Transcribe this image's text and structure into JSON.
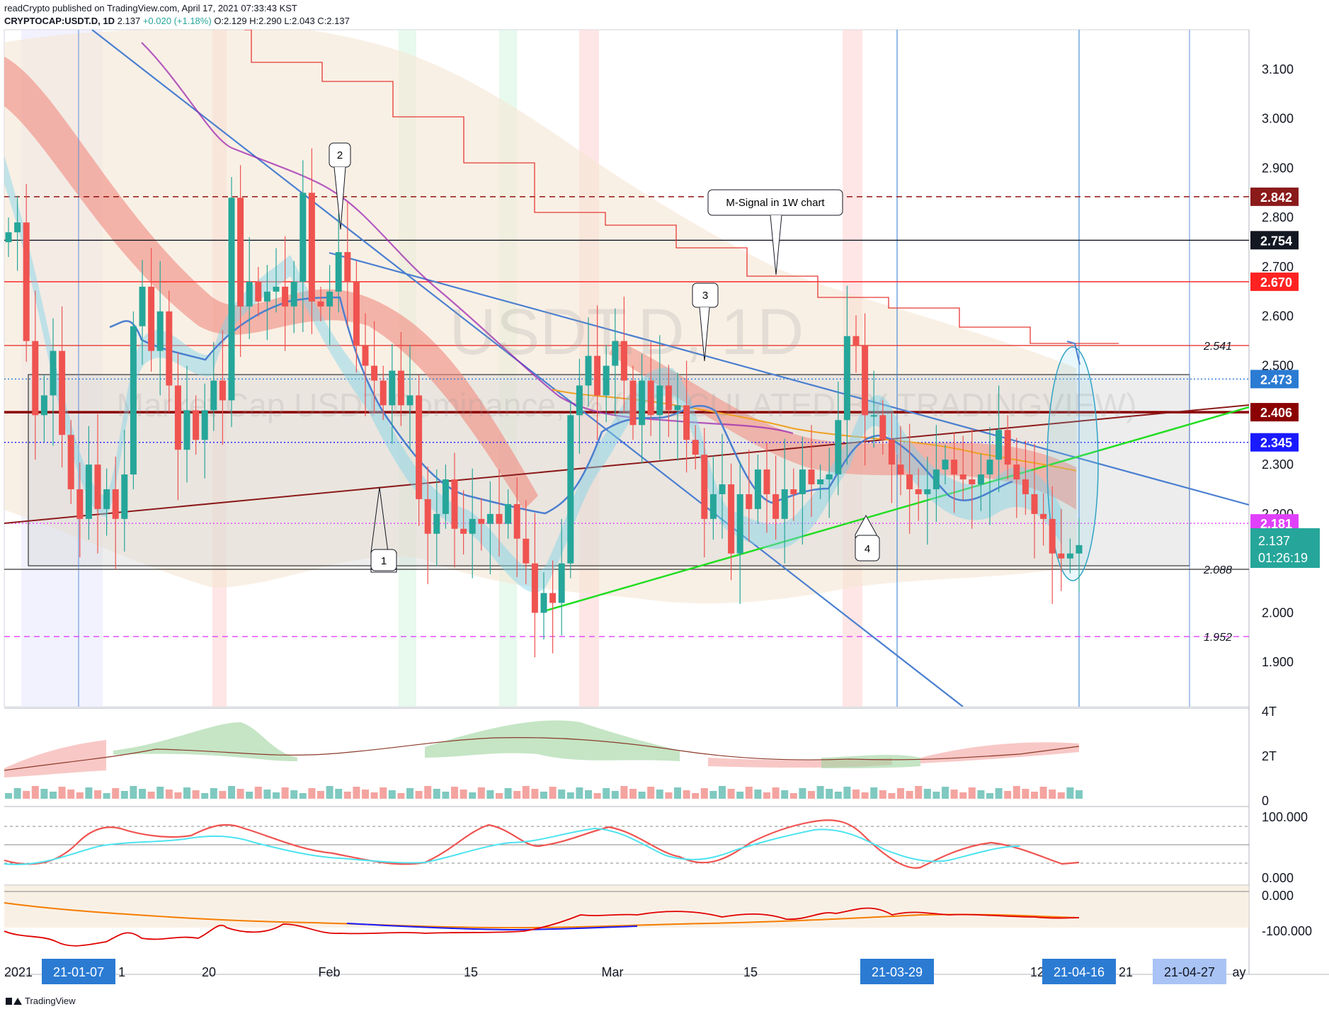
{
  "header": {
    "publisher_line": "readCrypto published on TradingView.com, April 17, 2021 07:33:43 KST",
    "symbol": "CRYPTOCAP:USDT.D, 1D",
    "last": "2.137",
    "change": "+0.020 (+1.18%)",
    "ohlc": "O:2.129 H:2.290 L:2.043 C:2.137"
  },
  "watermark": {
    "symbol": "USDT.D, 1D",
    "description": "Market Cap USDT Dominance, % (CALCULATED BY TRADINGVIEW)"
  },
  "colors": {
    "bull": "#26a69a",
    "bear": "#ef5350",
    "trend_blue": "#4a7fd0",
    "green_line": "#22dd22",
    "dark_red": "#8b0000",
    "magenta": "#e040fb",
    "price_tag_bg": "#26a69a"
  },
  "chart_data": {
    "type": "candlestick",
    "symbol": "CRYPTOCAP:USDT.D",
    "timeframe": "1D",
    "x_tick_labels": [
      "2021",
      "21-01-07",
      "1",
      "20",
      "Feb",
      "15",
      "Mar",
      "15",
      "21-03-29",
      "12",
      "21-04-16",
      "21",
      "21-04-27",
      "ay"
    ],
    "highlighted_dates": [
      "21-01-07",
      "21-03-29",
      "21-04-16",
      "21-04-27"
    ],
    "y_axis_labels": [
      "3.100",
      "3.000",
      "2.900",
      "2.800",
      "2.700",
      "2.600",
      "2.500",
      "2.300",
      "2.200",
      "2.000",
      "1.900"
    ],
    "ylim": [
      1.81,
      3.18
    ],
    "closes": [
      2.77,
      2.79,
      2.55,
      2.4,
      2.44,
      2.53,
      2.36,
      2.25,
      2.19,
      2.3,
      2.21,
      2.25,
      2.19,
      2.28,
      2.58,
      2.66,
      2.53,
      2.61,
      2.46,
      2.33,
      2.41,
      2.35,
      2.41,
      2.47,
      2.43,
      2.84,
      2.62,
      2.67,
      2.63,
      2.65,
      2.66,
      2.62,
      2.67,
      2.85,
      2.63,
      2.62,
      2.65,
      2.73,
      2.67,
      2.54,
      2.5,
      2.47,
      2.42,
      2.49,
      2.42,
      2.44,
      2.23,
      2.16,
      2.2,
      2.27,
      2.17,
      2.16,
      2.19,
      2.18,
      2.2,
      2.18,
      2.22,
      2.15,
      2.1,
      2.0,
      2.04,
      2.02,
      2.1,
      2.4,
      2.46,
      2.52,
      2.44,
      2.5,
      2.55,
      2.47,
      2.38,
      2.47,
      2.4,
      2.46,
      2.41,
      2.42,
      2.35,
      2.32,
      2.19,
      2.24,
      2.26,
      2.12,
      2.24,
      2.21,
      2.29,
      2.24,
      2.19,
      2.25,
      2.24,
      2.29,
      2.26,
      2.27,
      2.28,
      2.39,
      2.56,
      2.54,
      2.4,
      2.4,
      2.35,
      2.3,
      2.28,
      2.25,
      2.24,
      2.25,
      2.29,
      2.31,
      2.28,
      2.27,
      2.26,
      2.28,
      2.31,
      2.37,
      2.3,
      2.27,
      2.24,
      2.2,
      2.19,
      2.12,
      2.11,
      2.12,
      2.137
    ],
    "horizontal_levels": [
      {
        "value": 2.842,
        "label": "2.842",
        "style": "dashed",
        "color": "#8b0000"
      },
      {
        "value": 2.754,
        "label": "2.754",
        "style": "solid",
        "color": "#131722"
      },
      {
        "value": 2.67,
        "label": "2.670",
        "style": "solid",
        "color": "#ff2a2a"
      },
      {
        "value": 2.541,
        "label": "2.541",
        "style": "solid",
        "color": "#e53935"
      },
      {
        "value": 2.473,
        "label": "2.473",
        "style": "dotted",
        "color": "#2b7bd3"
      },
      {
        "value": 2.406,
        "label": "2.406",
        "style": "solid",
        "color": "#8b0000"
      },
      {
        "value": 2.345,
        "label": "2.345",
        "style": "dotted",
        "color": "#1a1aff"
      },
      {
        "value": 2.181,
        "label": "2.181",
        "style": "dotted",
        "color": "#e040fb"
      },
      {
        "value": 2.088,
        "label": "2.088",
        "style": "solid",
        "color": "#555555"
      },
      {
        "value": 1.952,
        "label": "1.952",
        "style": "dashed",
        "color": "#e040fb"
      }
    ],
    "last_price": {
      "value": 2.137,
      "label": "2.137",
      "countdown": "01:26:19"
    },
    "annotations": [
      {
        "text": "1"
      },
      {
        "text": "2"
      },
      {
        "text": "3"
      },
      {
        "text": "4"
      },
      {
        "text": "M-Signal in 1W chart"
      }
    ],
    "volume_pane": {
      "labels": [
        "4T",
        "2T",
        "0"
      ]
    },
    "stoch_pane": {
      "labels": [
        "100.000",
        "0.000"
      ]
    },
    "osc_pane": {
      "labels": [
        "0.000",
        "-100.000"
      ]
    }
  },
  "footer": {
    "brand": "TradingView"
  }
}
